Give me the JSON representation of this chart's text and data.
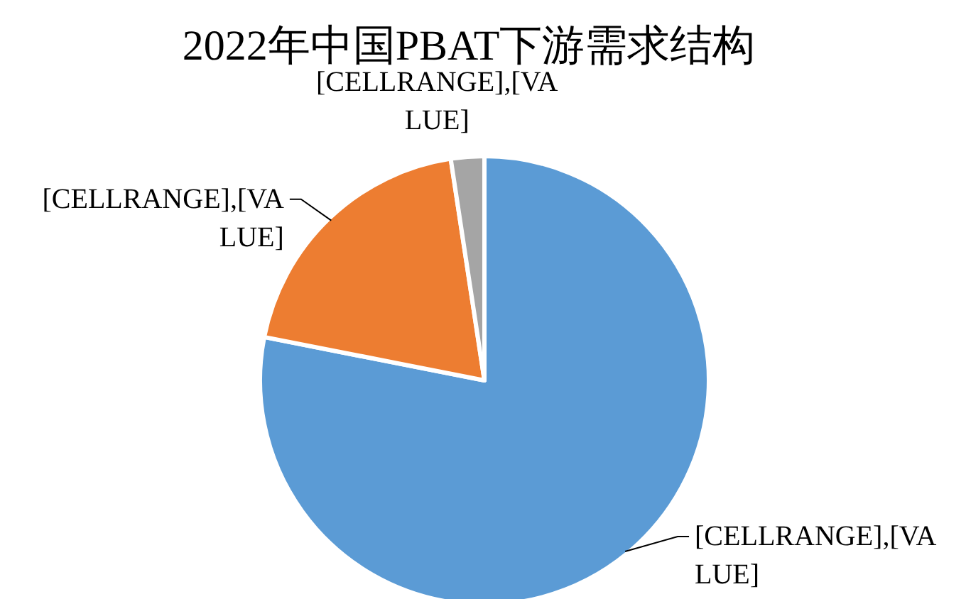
{
  "chart_data": {
    "type": "pie",
    "title": "2022年中国PBAT下游需求结构",
    "categories": [
      null,
      null,
      null
    ],
    "values": [
      78.1,
      19.5,
      2.4
    ],
    "colors": [
      "#5b9bd5",
      "#ed7d31",
      "#a5a5a5"
    ],
    "value_labels": [
      "[CELLRANGE],[VALUE]",
      "[CELLRANGE],[VALUE]",
      "[CELLRANGE],[VALUE]"
    ]
  }
}
